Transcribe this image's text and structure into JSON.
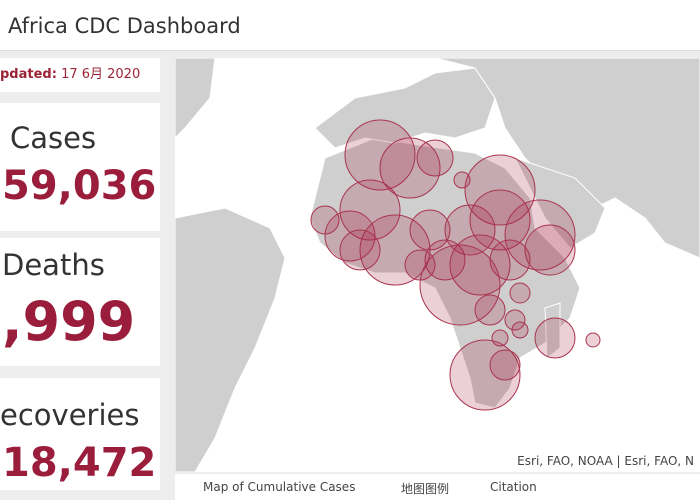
{
  "header": {
    "title": "Africa CDC Dashboard"
  },
  "updated": {
    "label": "pdated:",
    "date": "17 6月 2020"
  },
  "cards": [
    {
      "label": "Cases",
      "value": "59,036"
    },
    {
      "label": "Deaths",
      "value": ",999"
    },
    {
      "label": "ecoveries",
      "value": "18,472"
    }
  ],
  "map": {
    "attribution": "Esri, FAO, NOAA | Esri, FAO, N"
  },
  "tabs": [
    "Map of Cumulative Cases",
    "地图图例",
    "Citation"
  ]
}
